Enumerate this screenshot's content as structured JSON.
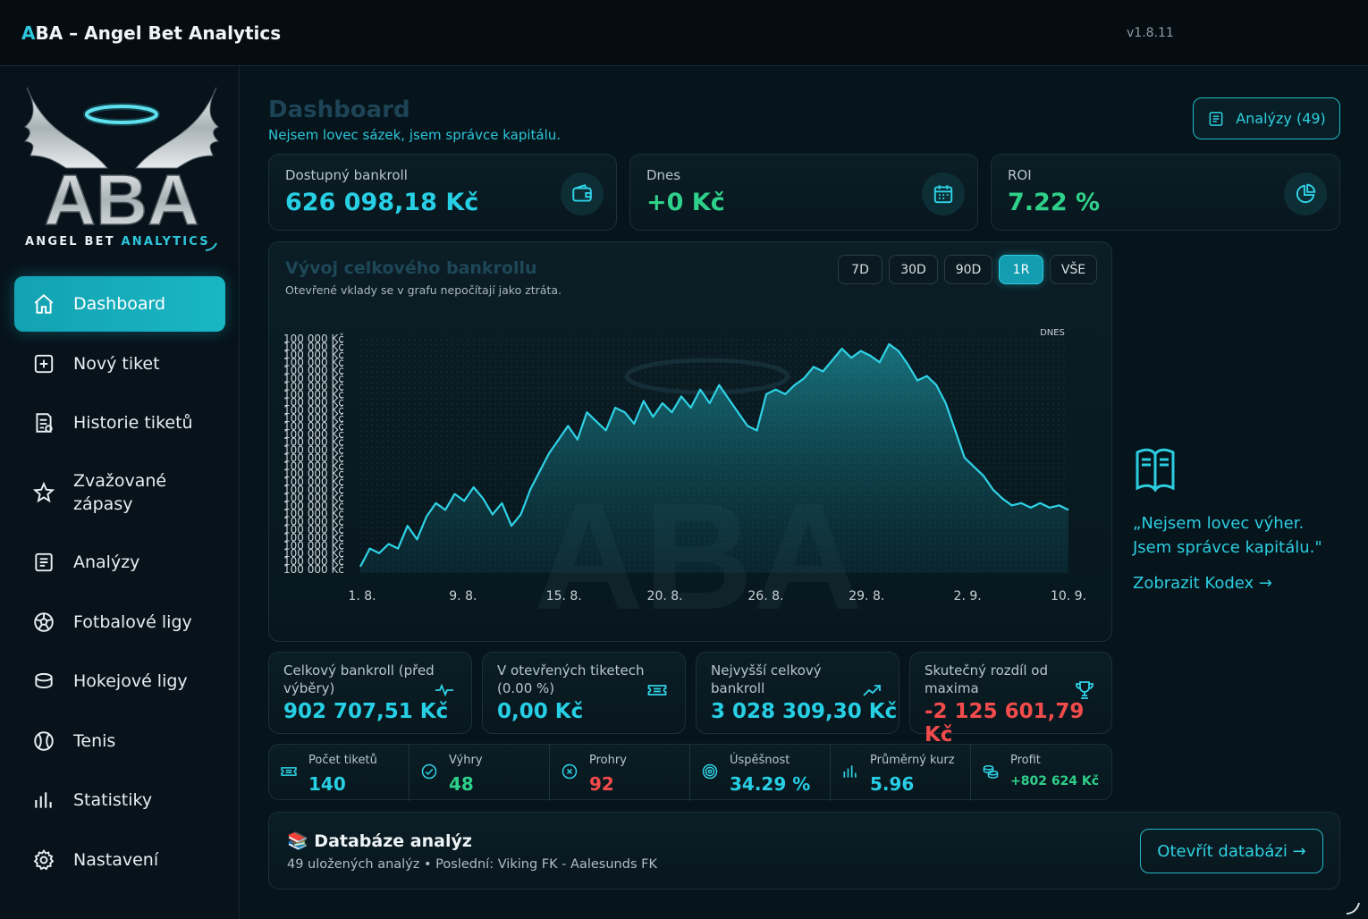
{
  "window": {
    "title_accent": "A",
    "title_rest": "BA – Angel Bet Analytics",
    "version": "v1.8.11"
  },
  "logo": {
    "text": "ABA",
    "tagline_white": "ANGEL BET",
    "tagline_accent": "ANALYTICS"
  },
  "sidebar": {
    "items": [
      {
        "label": "Dashboard",
        "icon": "home-icon",
        "active": true
      },
      {
        "label": "Nový tiket",
        "icon": "plus-square-icon"
      },
      {
        "label": "Historie tiketů",
        "icon": "receipt-icon"
      },
      {
        "label": "Zvažované zápasy",
        "icon": "star-icon"
      },
      {
        "label": "Analýzy",
        "icon": "document-list-icon"
      },
      {
        "label": "Fotbalové ligy",
        "icon": "football-icon"
      },
      {
        "label": "Hokejové ligy",
        "icon": "hockey-puck-icon"
      },
      {
        "label": "Tenis",
        "icon": "tennis-ball-icon"
      },
      {
        "label": "Statistiky",
        "icon": "bar-chart-icon"
      },
      {
        "label": "Nastavení",
        "icon": "gear-icon"
      }
    ]
  },
  "header": {
    "title": "Dashboard",
    "subtitle": "Nejsem lovec sázek, jsem správce kapitálu.",
    "analyses_button": "Analýzy (49)"
  },
  "kpis": [
    {
      "label": "Dostupný bankroll",
      "value": "626 098,18 Kč",
      "icon": "wallet-icon",
      "color": "#27cfe4"
    },
    {
      "label": "Dnes",
      "value": "+0 Kč",
      "icon": "calendar-icon",
      "color": "#2fd08a"
    },
    {
      "label": "ROI",
      "value": "7.22 %",
      "icon": "pie-chart-icon",
      "color": "#2fd08a"
    }
  ],
  "chart": {
    "title": "Vývoj celkového bankrollu",
    "subtitle": "Otevřené vklady se v grafu nepočítají jako ztráta.",
    "ranges": [
      "7D",
      "30D",
      "90D",
      "1R",
      "VŠE"
    ],
    "active_range": "1R",
    "today_label": "DNES"
  },
  "chart_data": {
    "type": "area",
    "title": "Vývoj celkového bankrollu",
    "x_tick_labels": [
      "1. 8.",
      "9. 8.",
      "15. 8.",
      "20. 8.",
      "26. 8.",
      "29. 8.",
      "2. 9.",
      "10. 9."
    ],
    "y_tick_labels": [
      "100 000 Kč",
      "100 000 Kč",
      "100 000 Kč",
      "100 000 Kč",
      "100 000 Kč",
      "100 000 Kč",
      "100 000 Kč",
      "100 000 Kč",
      "100 000 Kč",
      "100 000 Kč",
      "100 000 Kč",
      "100 000 Kč",
      "100 000 Kč",
      "100 000 Kč",
      "100 000 Kč",
      "100 000 Kč",
      "100 000 Kč",
      "100 000 Kč",
      "100 000 Kč",
      "100 000 Kč",
      "100 000 Kč",
      "100 000 Kč",
      "100 000 Kč",
      "100 000 Kč",
      "100 000 Kč",
      "100 000 Kč",
      "100 000 Kč",
      "100 000 Kč",
      "100 000 Kč",
      "100 000 Kč"
    ],
    "series": [
      {
        "values": [
          0.02,
          0.1,
          0.08,
          0.12,
          0.1,
          0.2,
          0.14,
          0.24,
          0.3,
          0.27,
          0.34,
          0.31,
          0.37,
          0.32,
          0.25,
          0.3,
          0.2,
          0.25,
          0.36,
          0.44,
          0.52,
          0.58,
          0.64,
          0.58,
          0.7,
          0.66,
          0.62,
          0.72,
          0.7,
          0.65,
          0.75,
          0.68,
          0.74,
          0.7,
          0.77,
          0.72,
          0.8,
          0.74,
          0.82,
          0.76,
          0.7,
          0.64,
          0.62,
          0.78,
          0.8,
          0.78,
          0.82,
          0.85,
          0.9,
          0.88,
          0.93,
          0.98,
          0.94,
          0.97,
          0.95,
          0.92,
          1.0,
          0.97,
          0.91,
          0.84,
          0.86,
          0.82,
          0.74,
          0.62,
          0.5,
          0.46,
          0.42,
          0.36,
          0.32,
          0.29,
          0.3,
          0.28,
          0.3,
          0.28,
          0.29,
          0.27
        ]
      }
    ]
  },
  "quote": {
    "text_line1": "„Nejsem lovec výher.",
    "text_line2": "Jsem správce kapitálu.\"",
    "link": "Zobrazit Kodex →"
  },
  "stats": [
    {
      "label": "Celkový bankroll (před výběry)",
      "value": "902 707,51 Kč",
      "icon": "pulse-icon",
      "color": "#27cfe4"
    },
    {
      "label": "V otevřených tiketech (0.00 %)",
      "value": "0,00 Kč",
      "icon": "ticket-icon",
      "color": "#27cfe4"
    },
    {
      "label": "Nejvyšší celkový bankroll",
      "value": "3 028 309,30 Kč",
      "icon": "trend-up-icon",
      "color": "#27cfe4"
    },
    {
      "label": "Skutečný rozdíl od maxima",
      "value": "-2 125 601,79 Kč",
      "icon": "trophy-icon",
      "color": "#f24b4b"
    }
  ],
  "mini_stats": [
    {
      "label": "Počet tiketů",
      "value": "140",
      "icon": "ticket-icon",
      "color": "#27cfe4"
    },
    {
      "label": "Výhry",
      "value": "48",
      "icon": "check-circle-icon",
      "color": "#2fd08a"
    },
    {
      "label": "Prohry",
      "value": "92",
      "icon": "x-circle-icon",
      "color": "#f24b4b"
    },
    {
      "label": "Úspěšnost",
      "value": "34.29 %",
      "icon": "target-icon",
      "color": "#27cfe4"
    },
    {
      "label": "Průměrný kurz",
      "value": "5.96",
      "icon": "bar-chart-icon",
      "color": "#27cfe4"
    },
    {
      "label": "Profit",
      "value": "+802 624 Kč",
      "icon": "coins-icon",
      "color": "#2fd08a"
    }
  ],
  "database": {
    "emoji": "📚",
    "title": "Databáze analýz",
    "subtitle": "49 uložených analýz • Poslední: Viking FK - Aalesunds FK",
    "button": "Otevřít databázi →"
  }
}
